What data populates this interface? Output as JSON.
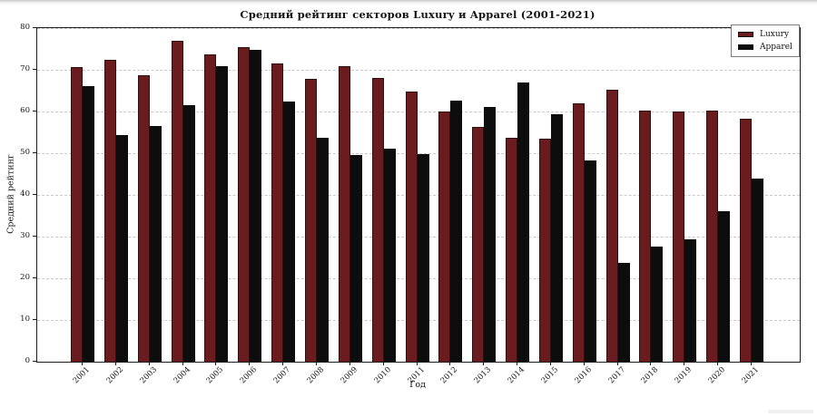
{
  "figure": {
    "title": "Средний рейтинг секторов Luxury и Apparel (2001-2021)"
  },
  "chart_data": {
    "type": "bar",
    "title": "Средний рейтинг секторов Luxury и Apparel (2001-2021)",
    "xlabel": "Год",
    "ylabel": "Средний рейтинг",
    "categories": [
      "2001",
      "2002",
      "2003",
      "2004",
      "2005",
      "2006",
      "2007",
      "2008",
      "2009",
      "2010",
      "2011",
      "2012",
      "2013",
      "2014",
      "2015",
      "2016",
      "2017",
      "2018",
      "2019",
      "2020",
      "2021"
    ],
    "series": [
      {
        "name": "Luxury",
        "color": "#691b1e",
        "values": [
          70.7,
          72.3,
          68.8,
          76.9,
          73.7,
          75.4,
          71.5,
          67.8,
          70.9,
          68.0,
          64.7,
          60.1,
          56.2,
          53.8,
          53.5,
          61.9,
          65.2,
          60.2,
          59.9,
          60.3,
          58.2
        ]
      },
      {
        "name": "Apparel",
        "color": "#0d0d0d",
        "values": [
          66.0,
          54.4,
          56.5,
          61.5,
          70.8,
          74.8,
          62.4,
          53.6,
          49.5,
          51.0,
          49.7,
          62.6,
          61.1,
          67.0,
          59.3,
          48.3,
          23.7,
          27.7,
          29.4,
          36.1,
          44.0
        ]
      }
    ],
    "ylim": [
      0,
      80
    ],
    "yticks": [
      0,
      10,
      20,
      30,
      40,
      50,
      60,
      70,
      80
    ],
    "grid": true,
    "grid_style": "dashed",
    "legend_position": "upper right"
  },
  "style": {
    "grid_color": "#c9c9c9",
    "spine_color": "#1c1c1c",
    "bar_edge_color": "rgba(15,10,10,0.65)"
  }
}
